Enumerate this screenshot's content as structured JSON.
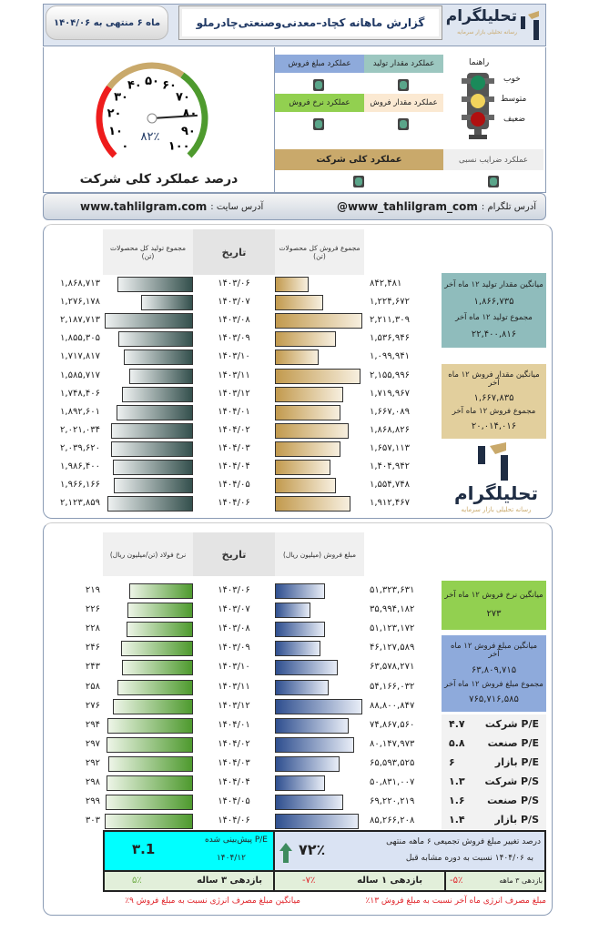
{
  "header": {
    "brand": "تحلیلگرام",
    "brand_tagline": "رسانه تحلیلی بازار سرمایه",
    "title": "گزارش ماهانه کچاد–معدنی‌وصنعتی‌چادرملو",
    "date": "ماه ۶ منتهی به ۱۴۰۴/۰۶"
  },
  "gauge": {
    "value": 82,
    "value_label": "۸۲٪",
    "ticks": [
      "۰",
      "۱۰",
      "۲۰",
      "۳۰",
      "۴۰",
      "۵۰",
      "۶۰",
      "۷۰",
      "۸۰",
      "۹۰",
      "۱۰۰"
    ],
    "title": "درصد عملکرد کلی شرکت",
    "colors": {
      "weak": "#ee1c1c",
      "medium": "#c9a96b",
      "good": "#4e9a2e"
    }
  },
  "guide": {
    "title": "راهنما",
    "good": "خوب",
    "medium": "متوسط",
    "weak": "ضعیف"
  },
  "performance": {
    "production_qty": "عملکرد مقدار تولید",
    "sales_amount": "عملکرد مبلغ فروش",
    "sales_qty": "عملکرد مقدار فروش",
    "sales_rate": "عملکرد  نرخ فروش",
    "overall": "عملکرد کلی شرکت",
    "ratios": "عملکرد ضرایب نسبی",
    "status_color": "#5aa58a"
  },
  "address": {
    "telegram_label": "آدرس تلگرام :",
    "telegram": "@www_tahlilgram_com",
    "site_label": "آدرس سایت :",
    "site": "www.tahlilgram.com"
  },
  "table1": {
    "production_header": "مجموع تولید کل محصولات",
    "production_unit": "(تن)",
    "date_header": "تاریخ",
    "sales_header": "مجموع فروش کل محصولات",
    "sales_unit": "(تن)",
    "dates": [
      "۱۴۰۳/۰۶",
      "۱۴۰۳/۰۷",
      "۱۴۰۳/۰۸",
      "۱۴۰۳/۰۹",
      "۱۴۰۳/۱۰",
      "۱۴۰۳/۱۱",
      "۱۴۰۳/۱۲",
      "۱۴۰۴/۰۱",
      "۱۴۰۴/۰۲",
      "۱۴۰۴/۰۳",
      "۱۴۰۴/۰۴",
      "۱۴۰۴/۰۵",
      "۱۴۰۴/۰۶"
    ],
    "production": [
      "۱,۸۶۸,۷۱۳",
      "۱,۲۷۶,۱۷۸",
      "۲,۱۸۷,۷۱۳",
      "۱,۸۵۵,۳۰۵",
      "۱,۷۱۷,۸۱۷",
      "۱,۵۸۵,۷۱۷",
      "۱,۷۴۸,۴۰۶",
      "۱,۸۹۲,۶۰۱",
      "۲,۰۲۱,۰۳۴",
      "۲,۰۳۹,۶۲۰",
      "۱,۹۸۶,۴۰۰",
      "۱,۹۶۶,۱۶۶",
      "۲,۱۲۳,۸۵۹"
    ],
    "sales": [
      "۸۴۲,۴۸۱",
      "۱,۲۲۴,۶۷۲",
      "۲,۲۱۱,۳۰۹",
      "۱,۵۳۶,۹۴۶",
      "۱,۰۹۹,۹۴۱",
      "۲,۱۵۵,۹۹۶",
      "۱,۷۱۹,۹۶۷",
      "۱,۶۶۷,۰۸۹",
      "۱,۸۶۸,۸۲۶",
      "۱,۶۵۷,۱۱۳",
      "۱,۴۰۴,۹۴۲",
      "۱,۵۵۴,۷۴۸",
      "۱,۹۱۲,۴۶۷"
    ],
    "side": {
      "avg_prod_label": "میانگین مقدار تولید ۱۲ ماه آخر",
      "avg_prod": "۱,۸۶۶,۷۳۵",
      "sum_prod_label": "مجموع تولید ۱۲ ماه آخر",
      "sum_prod": "۲۲,۴۰۰,۸۱۶",
      "avg_sales_label": "میانگین مقدار فروش ۱۲ ماه آخر",
      "avg_sales": "۱,۶۶۷,۸۳۵",
      "sum_sales_label": "مجموع فروش ۱۲ ماه آخر",
      "sum_sales": "۲۰,۰۱۴,۰۱۶"
    }
  },
  "table2": {
    "rate_header": "نرخ فولاد (تن/میلیون ریال)",
    "date_header": "تاریخ",
    "amount_header": "مبلغ فروش (میلیون ریال)",
    "dates": [
      "۱۴۰۳/۰۶",
      "۱۴۰۳/۰۷",
      "۱۴۰۳/۰۸",
      "۱۴۰۳/۰۹",
      "۱۴۰۳/۱۰",
      "۱۴۰۳/۱۱",
      "۱۴۰۳/۱۲",
      "۱۴۰۴/۰۱",
      "۱۴۰۴/۰۲",
      "۱۴۰۴/۰۳",
      "۱۴۰۴/۰۴",
      "۱۴۰۴/۰۵",
      "۱۴۰۴/۰۶"
    ],
    "rate": [
      "۲۱۹",
      "۲۲۶",
      "۲۲۸",
      "۲۴۶",
      "۲۴۳",
      "۲۵۸",
      "۲۷۶",
      "۲۹۴",
      "۲۹۷",
      "۲۹۲",
      "۲۹۸",
      "۲۹۹",
      "۳۰۳"
    ],
    "amount": [
      "۵۱,۳۲۳,۶۳۱",
      "۳۵,۹۹۴,۱۸۲",
      "۵۱,۱۲۳,۱۷۲",
      "۴۶,۱۲۷,۵۸۹",
      "۶۳,۵۷۸,۲۷۱",
      "۵۴,۱۶۶,۰۳۲",
      "۸۸,۸۰۰,۸۴۷",
      "۷۴,۸۶۷,۵۶۰",
      "۸۰,۱۴۷,۹۷۳",
      "۶۵,۵۹۳,۵۲۵",
      "۵۰,۸۳۱,۰۰۷",
      "۶۹,۲۲۰,۲۱۹",
      "۸۵,۲۶۶,۲۰۸"
    ],
    "side": {
      "avg_rate_label": "میانگین نرخ فروش ۱۲ ماه آخر",
      "avg_rate": "۲۷۳",
      "avg_amount_label": "میانگین مبلغ فروش ۱۲ ماه آخر",
      "avg_amount": "۶۳,۸۰۹,۷۱۵",
      "sum_amount_label": "مجموع مبلغ فروش ۱۲ ماه آخر",
      "sum_amount": "۷۶۵,۷۱۶,۵۸۵"
    },
    "ratios": [
      {
        "label": "P/E شرکت",
        "value": "۴.۷"
      },
      {
        "label": "P/E صنعت",
        "value": "۵.۸"
      },
      {
        "label": "P/E بازار",
        "value": "۶"
      },
      {
        "label": "P/S شرکت",
        "value": "۱.۳"
      },
      {
        "label": "P/S صنعت",
        "value": "۱.۶"
      },
      {
        "label": "P/S بازار",
        "value": "۱.۴"
      }
    ]
  },
  "summary": {
    "forecast_pe_label": "P/E پیش‌بینی شده",
    "forecast_pe_date": "۱۴۰۴/۱۲",
    "forecast_pe": "۳.1",
    "change_line1": "درصد تغییر مبلغ فروش تجمیعی ۶ ماهه منتهی",
    "change_line2": "به ۱۴۰۴/۰۶ نسبت به دوره مشابه قبل",
    "change_value": "۷۲٪",
    "ret_3m_label": "بازدهی ۳ ماهه",
    "ret_3m": "-۵٪",
    "ret_1y_label": "بازدهی ۱ ساله",
    "ret_1y": "-۷٪",
    "ret_3y_label": "بازدهی ۳ ساله",
    "ret_3y": "۵٪",
    "energy_last": "مبلغ مصرف انرژی ماه آخر نسبت به مبلغ فروش ۱۳٪",
    "energy_avg": "میانگین مبلغ مصرف انرژی نسبت به مبلغ فروش ۹٪"
  }
}
